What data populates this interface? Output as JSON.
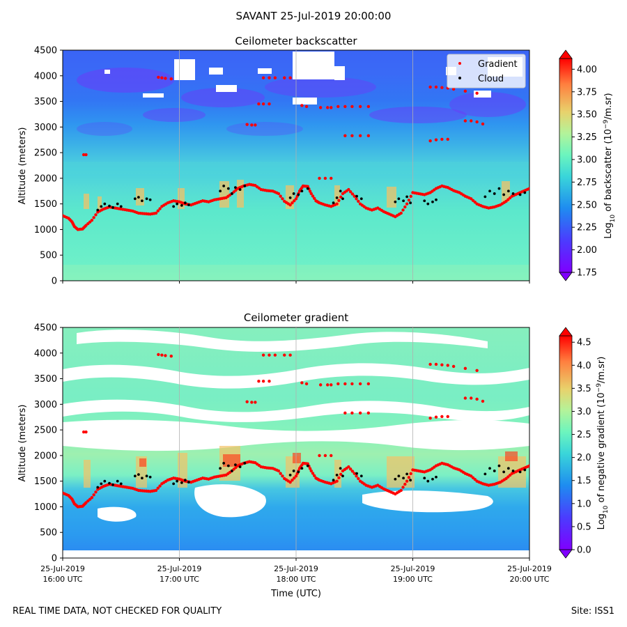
{
  "figure": {
    "suptitle": "SAVANT 25-Jul-2019 20:00:00",
    "footer_left": "REAL TIME DATA, NOT CHECKED FOR QUALITY",
    "footer_right": "Site: ISS1"
  },
  "colors": {
    "gradient_marker": "#ff0000",
    "cloud_marker": "#000000",
    "colormap": "rainbow"
  },
  "chart_data": [
    {
      "type": "heatmap",
      "title": "Ceilometer backscatter",
      "ylabel": "Altitude (meters)",
      "ylim": [
        0,
        4500
      ],
      "yticks": [
        0,
        500,
        1000,
        1500,
        2000,
        2500,
        3000,
        3500,
        4000,
        4500
      ],
      "colorbar": {
        "label_main": "Log",
        "label_sub": "10",
        "label_mid": " of backscatter (10",
        "label_sup": "−9",
        "label_end": "/m.sr)",
        "min": 1.75,
        "max": 4.0,
        "ticks": [
          "1.75",
          "2.00",
          "2.25",
          "2.50",
          "2.75",
          "3.00",
          "3.25",
          "3.50",
          "3.75",
          "4.00"
        ],
        "tick_values": [
          1.75,
          2.0,
          2.25,
          2.5,
          2.75,
          3.0,
          3.25,
          3.5,
          3.75,
          4.0
        ]
      },
      "legend": {
        "placement": "top-right",
        "entries": [
          {
            "name": "Gradient",
            "color": "#ff0000"
          },
          {
            "name": "Cloud",
            "color": "#000000"
          }
        ]
      }
    },
    {
      "type": "heatmap",
      "title": "Ceilometer gradient",
      "xlabel": "Time (UTC)",
      "ylabel": "Altitude (meters)",
      "ylim": [
        0,
        4500
      ],
      "yticks": [
        0,
        500,
        1000,
        1500,
        2000,
        2500,
        3000,
        3500,
        4000,
        4500
      ],
      "x_tick_labels": [
        {
          "date": "25-Jul-2019",
          "time": "16:00 UTC"
        },
        {
          "date": "25-Jul-2019",
          "time": "17:00 UTC"
        },
        {
          "date": "25-Jul-2019",
          "time": "18:00 UTC"
        },
        {
          "date": "25-Jul-2019",
          "time": "19:00 UTC"
        },
        {
          "date": "25-Jul-2019",
          "time": "20:00 UTC"
        }
      ],
      "colorbar": {
        "label_main": "Log",
        "label_sub": "10",
        "label_mid": " of negative gradient (10",
        "label_sup": "−9",
        "label_end": "/m.sr)",
        "min": 0.0,
        "max": 4.5,
        "ticks": [
          "0.0",
          "0.5",
          "1.0",
          "1.5",
          "2.0",
          "2.5",
          "3.0",
          "3.5",
          "4.0",
          "4.5"
        ],
        "tick_values": [
          0.0,
          0.5,
          1.0,
          1.5,
          2.0,
          2.5,
          3.0,
          3.5,
          4.0,
          4.5
        ]
      }
    }
  ],
  "series": {
    "gradient_boundary_layer": [
      [
        16.0,
        1270
      ],
      [
        16.05,
        1220
      ],
      [
        16.08,
        1150
      ],
      [
        16.1,
        1060
      ],
      [
        16.13,
        1000
      ],
      [
        16.17,
        1010
      ],
      [
        16.2,
        1080
      ],
      [
        16.25,
        1180
      ],
      [
        16.3,
        1340
      ],
      [
        16.35,
        1400
      ],
      [
        16.4,
        1440
      ],
      [
        16.45,
        1420
      ],
      [
        16.5,
        1400
      ],
      [
        16.55,
        1380
      ],
      [
        16.6,
        1360
      ],
      [
        16.65,
        1320
      ],
      [
        16.7,
        1310
      ],
      [
        16.75,
        1300
      ],
      [
        16.8,
        1320
      ],
      [
        16.85,
        1450
      ],
      [
        16.9,
        1520
      ],
      [
        16.95,
        1560
      ],
      [
        17.0,
        1540
      ],
      [
        17.05,
        1500
      ],
      [
        17.1,
        1480
      ],
      [
        17.15,
        1520
      ],
      [
        17.2,
        1560
      ],
      [
        17.25,
        1540
      ],
      [
        17.3,
        1580
      ],
      [
        17.35,
        1600
      ],
      [
        17.4,
        1620
      ],
      [
        17.45,
        1700
      ],
      [
        17.5,
        1800
      ],
      [
        17.55,
        1850
      ],
      [
        17.6,
        1880
      ],
      [
        17.65,
        1860
      ],
      [
        17.7,
        1780
      ],
      [
        17.75,
        1760
      ],
      [
        17.8,
        1750
      ],
      [
        17.85,
        1700
      ],
      [
        17.9,
        1550
      ],
      [
        17.95,
        1480
      ],
      [
        18.0,
        1600
      ],
      [
        18.03,
        1750
      ],
      [
        18.06,
        1850
      ],
      [
        18.1,
        1840
      ],
      [
        18.13,
        1700
      ],
      [
        18.17,
        1560
      ],
      [
        18.2,
        1520
      ],
      [
        18.25,
        1480
      ],
      [
        18.3,
        1450
      ],
      [
        18.35,
        1500
      ],
      [
        18.4,
        1700
      ],
      [
        18.45,
        1780
      ],
      [
        18.5,
        1650
      ],
      [
        18.55,
        1500
      ],
      [
        18.6,
        1420
      ],
      [
        18.65,
        1380
      ],
      [
        18.7,
        1420
      ],
      [
        18.75,
        1350
      ],
      [
        18.8,
        1300
      ],
      [
        18.85,
        1250
      ],
      [
        18.9,
        1320
      ],
      [
        18.95,
        1500
      ],
      [
        19.0,
        1720
      ],
      [
        19.05,
        1700
      ],
      [
        19.1,
        1680
      ],
      [
        19.15,
        1720
      ],
      [
        19.2,
        1800
      ],
      [
        19.25,
        1850
      ],
      [
        19.3,
        1820
      ],
      [
        19.35,
        1760
      ],
      [
        19.4,
        1720
      ],
      [
        19.45,
        1650
      ],
      [
        19.5,
        1600
      ],
      [
        19.55,
        1500
      ],
      [
        19.6,
        1450
      ],
      [
        19.65,
        1420
      ],
      [
        19.7,
        1440
      ],
      [
        19.75,
        1480
      ],
      [
        19.8,
        1550
      ],
      [
        19.85,
        1650
      ],
      [
        19.9,
        1700
      ],
      [
        19.95,
        1750
      ],
      [
        20.0,
        1800
      ]
    ],
    "gradient_upper_layers": [
      [
        16.18,
        2460
      ],
      [
        16.2,
        2460
      ],
      [
        16.82,
        3970
      ],
      [
        16.85,
        3960
      ],
      [
        16.88,
        3950
      ],
      [
        16.93,
        3940
      ],
      [
        17.58,
        3050
      ],
      [
        17.62,
        3040
      ],
      [
        17.65,
        3040
      ],
      [
        17.68,
        3450
      ],
      [
        17.72,
        3450
      ],
      [
        17.77,
        3450
      ],
      [
        17.72,
        3960
      ],
      [
        17.77,
        3960
      ],
      [
        17.82,
        3960
      ],
      [
        17.9,
        3960
      ],
      [
        17.95,
        3960
      ],
      [
        18.05,
        3420
      ],
      [
        18.09,
        3400
      ],
      [
        18.21,
        3380
      ],
      [
        18.27,
        3380
      ],
      [
        18.3,
        3380
      ],
      [
        18.2,
        2000
      ],
      [
        18.25,
        2000
      ],
      [
        18.3,
        2000
      ],
      [
        18.36,
        3400
      ],
      [
        18.42,
        3400
      ],
      [
        18.48,
        3400
      ],
      [
        18.55,
        3400
      ],
      [
        18.62,
        3400
      ],
      [
        18.42,
        2830
      ],
      [
        18.48,
        2830
      ],
      [
        18.55,
        2830
      ],
      [
        18.62,
        2830
      ],
      [
        19.15,
        3780
      ],
      [
        19.2,
        3780
      ],
      [
        19.25,
        3770
      ],
      [
        19.3,
        3760
      ],
      [
        19.35,
        3740
      ],
      [
        19.45,
        3700
      ],
      [
        19.55,
        3660
      ],
      [
        19.15,
        2730
      ],
      [
        19.2,
        2750
      ],
      [
        19.25,
        2760
      ],
      [
        19.3,
        2760
      ],
      [
        19.45,
        3120
      ],
      [
        19.5,
        3120
      ],
      [
        19.55,
        3100
      ],
      [
        19.6,
        3060
      ]
    ],
    "cloud": [
      [
        16.3,
        1380
      ],
      [
        16.33,
        1450
      ],
      [
        16.36,
        1500
      ],
      [
        16.4,
        1460
      ],
      [
        16.43,
        1430
      ],
      [
        16.47,
        1500
      ],
      [
        16.5,
        1450
      ],
      [
        16.62,
        1600
      ],
      [
        16.65,
        1630
      ],
      [
        16.68,
        1560
      ],
      [
        16.72,
        1600
      ],
      [
        16.75,
        1580
      ],
      [
        16.95,
        1450
      ],
      [
        16.98,
        1500
      ],
      [
        17.02,
        1470
      ],
      [
        17.05,
        1520
      ],
      [
        17.08,
        1480
      ],
      [
        17.35,
        1750
      ],
      [
        17.38,
        1850
      ],
      [
        17.42,
        1800
      ],
      [
        17.45,
        1700
      ],
      [
        17.48,
        1820
      ],
      [
        17.52,
        1780
      ],
      [
        17.56,
        1850
      ],
      [
        17.95,
        1620
      ],
      [
        17.98,
        1700
      ],
      [
        18.02,
        1680
      ],
      [
        18.05,
        1750
      ],
      [
        18.1,
        1800
      ],
      [
        18.32,
        1520
      ],
      [
        18.35,
        1620
      ],
      [
        18.38,
        1750
      ],
      [
        18.4,
        1600
      ],
      [
        18.52,
        1650
      ],
      [
        18.56,
        1600
      ],
      [
        18.85,
        1540
      ],
      [
        18.88,
        1600
      ],
      [
        18.92,
        1560
      ],
      [
        18.95,
        1640
      ],
      [
        18.98,
        1520
      ],
      [
        19.1,
        1560
      ],
      [
        19.13,
        1500
      ],
      [
        19.17,
        1540
      ],
      [
        19.2,
        1580
      ],
      [
        19.62,
        1640
      ],
      [
        19.66,
        1750
      ],
      [
        19.7,
        1700
      ],
      [
        19.74,
        1800
      ],
      [
        19.78,
        1680
      ],
      [
        19.82,
        1750
      ],
      [
        19.86,
        1700
      ],
      [
        19.92,
        1680
      ],
      [
        19.96,
        1720
      ]
    ]
  }
}
